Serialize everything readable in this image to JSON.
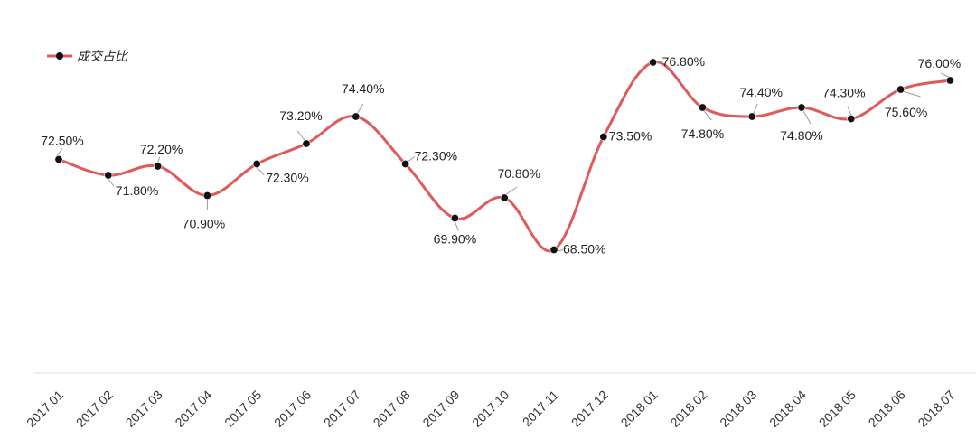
{
  "chart_data": {
    "type": "line",
    "title": "",
    "xlabel": "",
    "ylabel": "",
    "categories": [
      "2017.01",
      "2017.02",
      "2017.03",
      "2017.04",
      "2017.05",
      "2017.06",
      "2017.07",
      "2017.08",
      "2017.09",
      "2017.10",
      "2017.11",
      "2017.12",
      "2018.01",
      "2018.02",
      "2018.03",
      "2018.04",
      "2018.05",
      "2018.06",
      "2018.07"
    ],
    "series": [
      {
        "name": "成交占比",
        "color": "#e05a5a",
        "values": [
          72.5,
          71.8,
          72.2,
          70.9,
          72.3,
          73.2,
          74.4,
          72.3,
          69.9,
          70.8,
          68.5,
          73.5,
          76.8,
          74.8,
          74.4,
          74.8,
          74.3,
          75.6,
          76.0
        ],
        "labels": [
          "72.50%",
          "71.80%",
          "72.20%",
          "70.90%",
          "72.30%",
          "73.20%",
          "74.40%",
          "72.30%",
          "69.90%",
          "70.80%",
          "68.50%",
          "73.50%",
          "76.80%",
          "74.80%",
          "74.40%",
          "74.80%",
          "74.30%",
          "75.60%",
          "76.00%"
        ]
      }
    ],
    "legend": {
      "position": "top-left"
    },
    "grid": false,
    "ylim": [
      63,
      77.6
    ]
  }
}
